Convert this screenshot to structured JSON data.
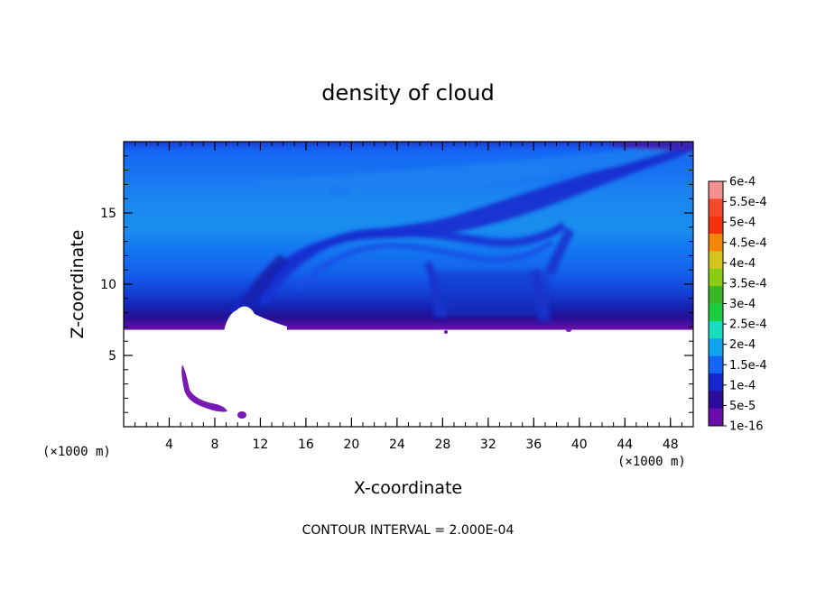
{
  "chart_data": {
    "type": "heatmap",
    "title": "density of cloud",
    "xlabel": "X-coordinate",
    "ylabel": "Z-coordinate",
    "x_unit_left": "(×1000 m)",
    "x_unit_right": "(×1000 m)",
    "xlim": [
      0,
      50
    ],
    "ylim": [
      0,
      20
    ],
    "x_ticks": [
      4,
      8,
      12,
      16,
      20,
      24,
      28,
      32,
      36,
      40,
      44,
      48
    ],
    "y_ticks": [
      5,
      10,
      15
    ],
    "footer": "CONTOUR INTERVAL = 2.000E-04",
    "colorbar": {
      "labels": [
        "6e-4",
        "5.5e-4",
        "5e-4",
        "4.5e-4",
        "4e-4",
        "3.5e-4",
        "3e-4",
        "2.5e-4",
        "2e-4",
        "1.5e-4",
        "1e-4",
        "5e-5",
        "1e-16"
      ],
      "colors": [
        "#f69090",
        "#f44a2c",
        "#f4300e",
        "#f4860a",
        "#d2c61e",
        "#8acd14",
        "#3ab628",
        "#1acc3e",
        "#18dcbe",
        "#10a4ee",
        "#1466f4",
        "#1426cc",
        "#2c0c9c",
        "#6c0cac"
      ]
    },
    "cloud_base_z": 6.8,
    "cloud_top_z": 20
  }
}
